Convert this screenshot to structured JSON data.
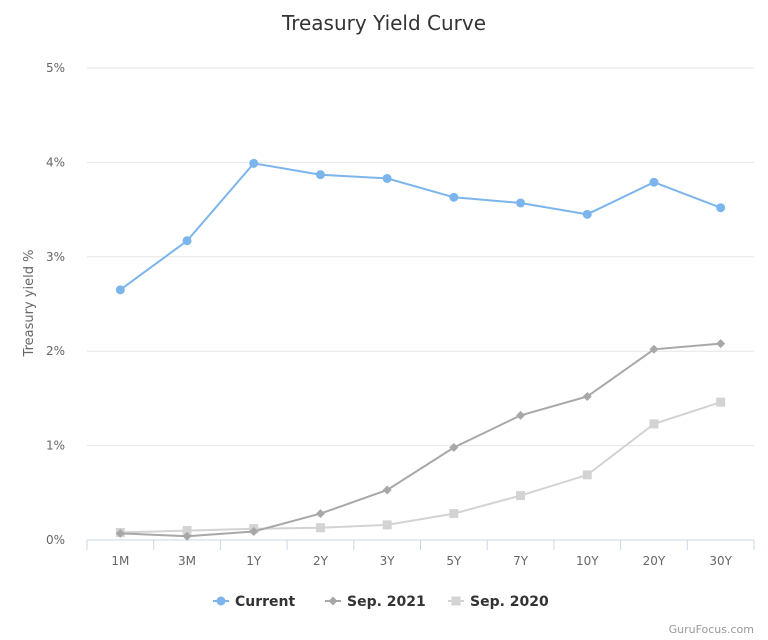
{
  "chart_data": {
    "type": "line",
    "title": "Treasury Yield Curve",
    "xlabel": "",
    "ylabel": "Treasury yield %",
    "categories": [
      "1M",
      "3M",
      "1Y",
      "2Y",
      "3Y",
      "5Y",
      "7Y",
      "10Y",
      "20Y",
      "30Y"
    ],
    "ylim": [
      0,
      5
    ],
    "yticks": [
      "0%",
      "1%",
      "2%",
      "3%",
      "4%",
      "5%"
    ],
    "grid": true,
    "legend_position": "bottom",
    "series": [
      {
        "name": "Current",
        "color": "#7cb5ec",
        "marker": "circle",
        "values": [
          2.65,
          3.17,
          3.99,
          3.87,
          3.83,
          3.63,
          3.57,
          3.45,
          3.79,
          3.52
        ]
      },
      {
        "name": "Sep. 2021",
        "color": "#a8a8a8",
        "marker": "diamond",
        "values": [
          0.07,
          0.04,
          0.09,
          0.28,
          0.53,
          0.98,
          1.32,
          1.52,
          2.02,
          2.08
        ]
      },
      {
        "name": "Sep. 2020",
        "color": "#d3d3d3",
        "marker": "square",
        "values": [
          0.08,
          0.1,
          0.12,
          0.13,
          0.16,
          0.28,
          0.47,
          0.69,
          1.23,
          1.46
        ]
      }
    ]
  },
  "credit": "GuruFocus.com"
}
